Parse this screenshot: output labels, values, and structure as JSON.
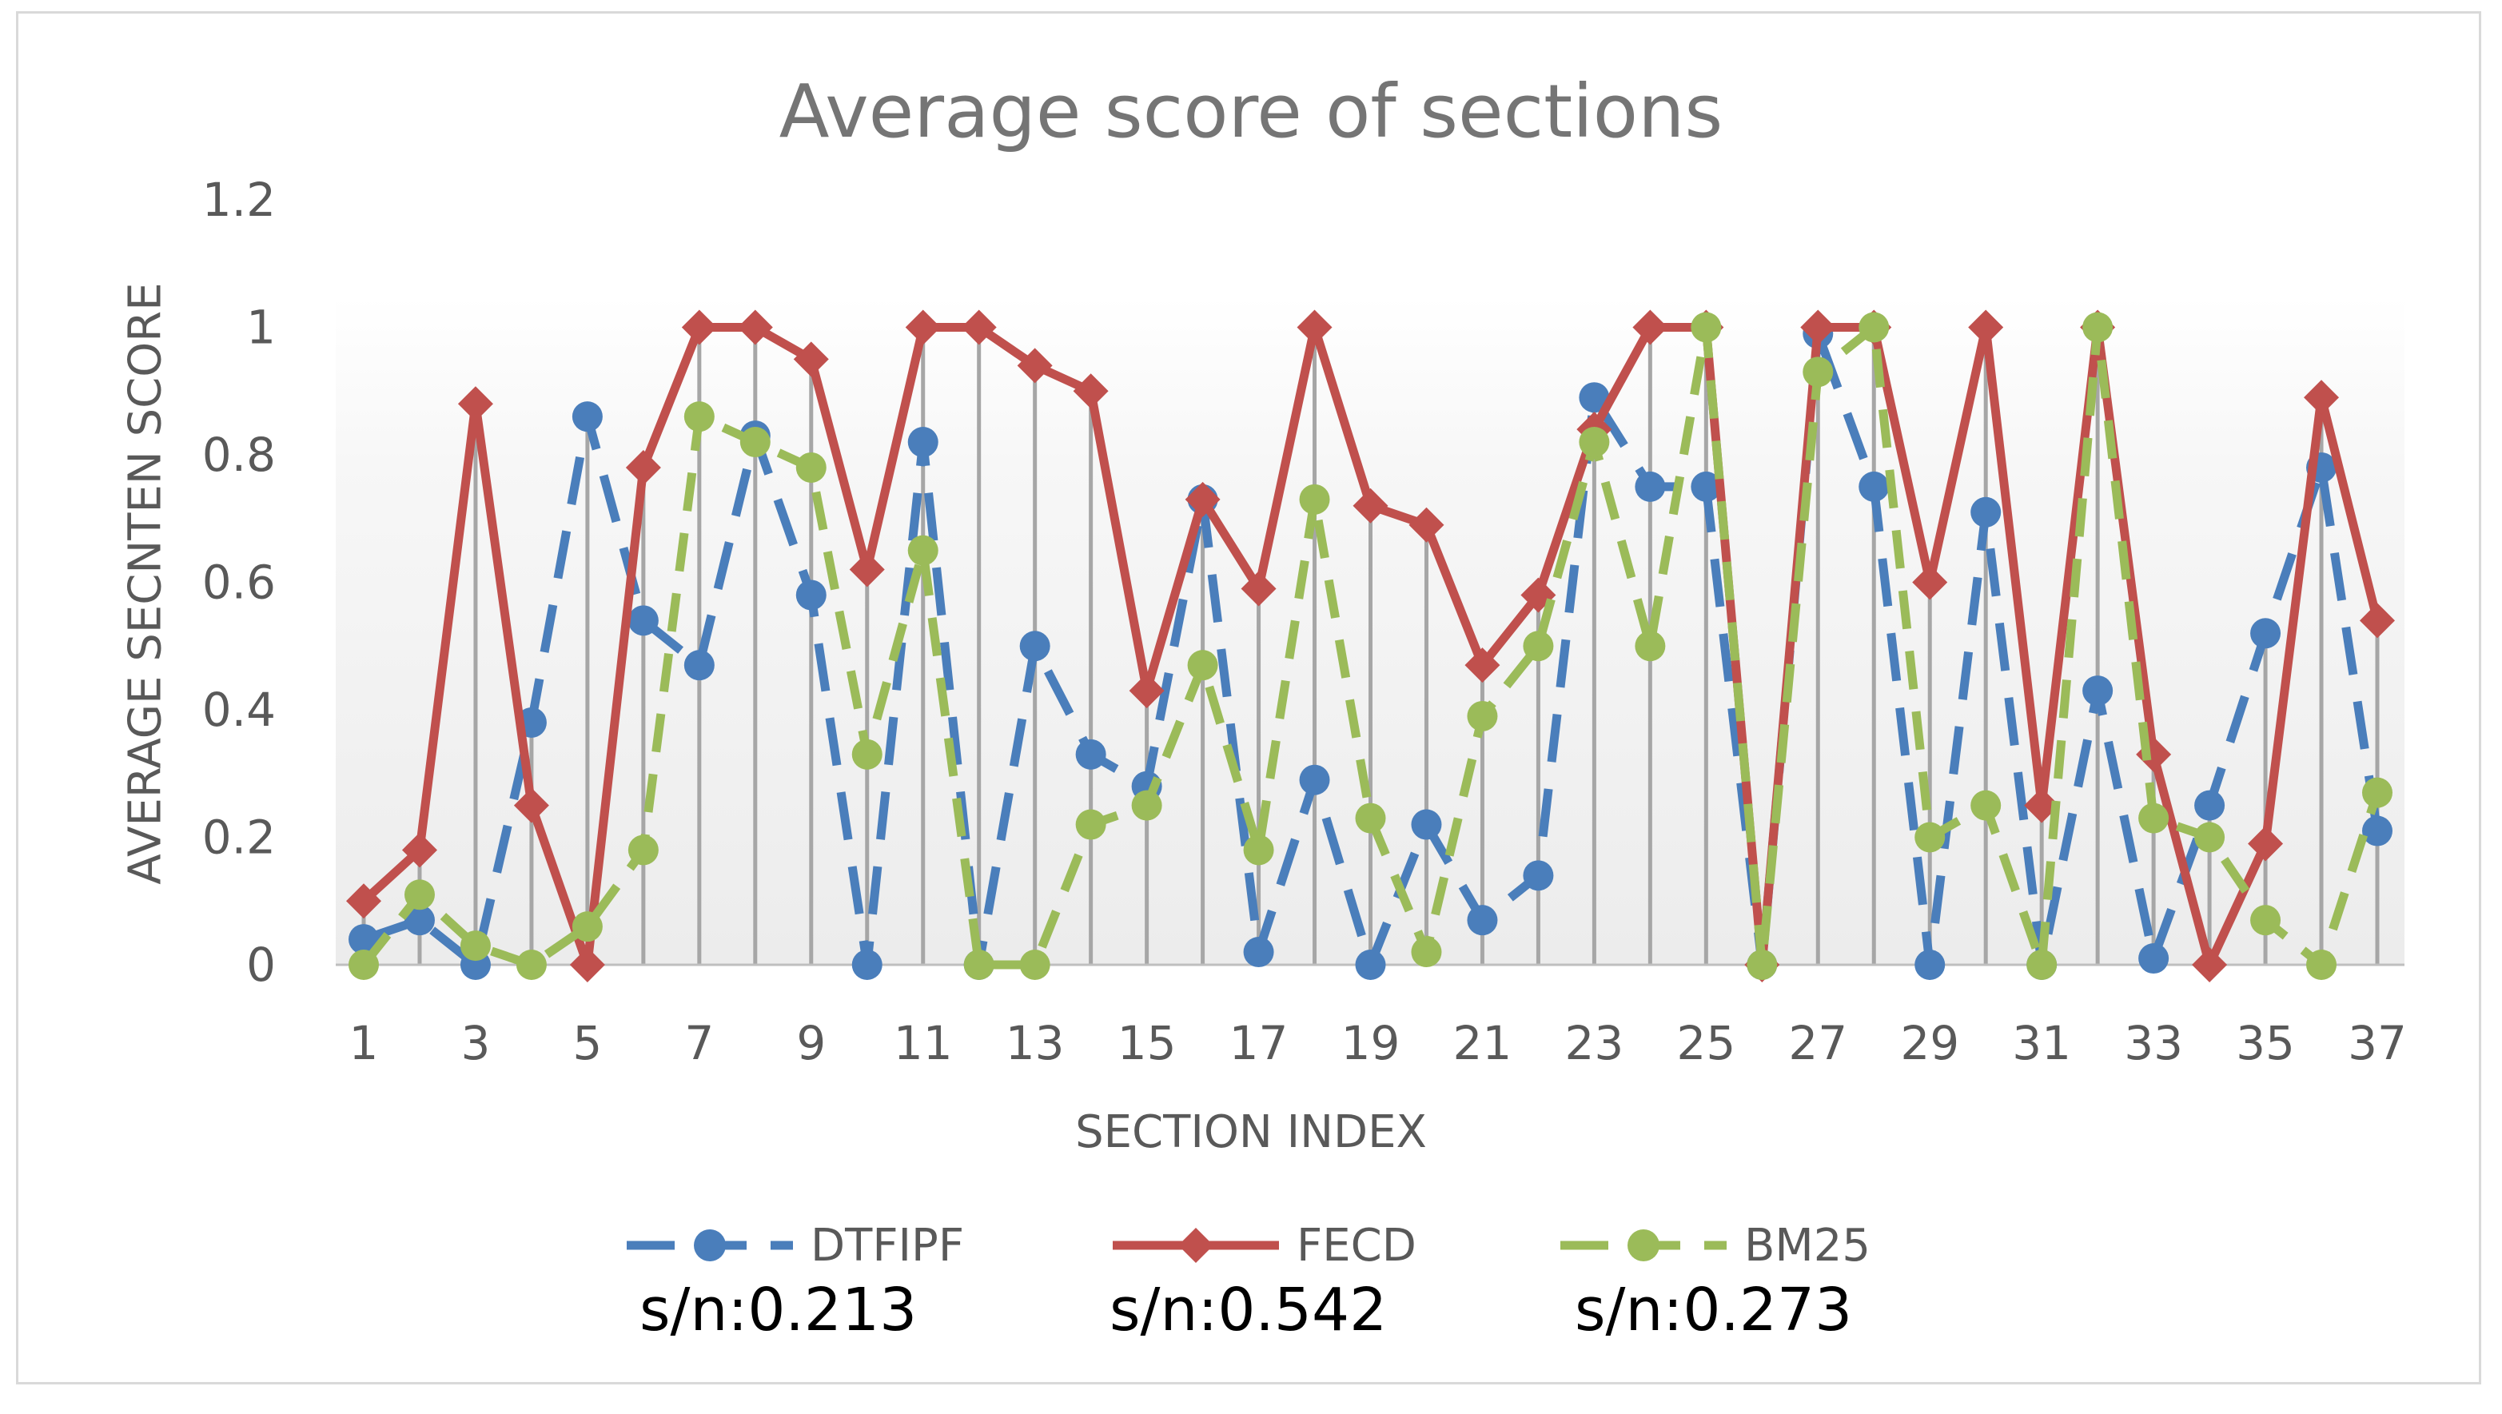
{
  "chart_data": {
    "type": "line",
    "title": "Average score of sections",
    "xlabel": "SECTION INDEX",
    "ylabel": "AVERAGE SECNTEN SCORE",
    "ylim": [
      0,
      1.2
    ],
    "yticks": [
      "0",
      "0.2",
      "0.4",
      "0.6",
      "0.8",
      "1",
      "1.2"
    ],
    "x": [
      1,
      2,
      3,
      4,
      5,
      6,
      7,
      8,
      9,
      10,
      11,
      12,
      13,
      14,
      15,
      16,
      17,
      18,
      19,
      20,
      21,
      22,
      23,
      24,
      25,
      26,
      27,
      28,
      29,
      30,
      31,
      32,
      33,
      34,
      35,
      36,
      37
    ],
    "xtick_labels": [
      "1",
      "3",
      "5",
      "7",
      "9",
      "11",
      "13",
      "15",
      "17",
      "19",
      "21",
      "23",
      "25",
      "27",
      "29",
      "31",
      "33",
      "35",
      "37"
    ],
    "grid": "vertical drop lines",
    "legend_position": "bottom",
    "series": [
      {
        "name": "DTFIPF",
        "color": "#4a7ebb",
        "style": "dashed, circle markers",
        "values": [
          0.04,
          0.07,
          0.0,
          0.38,
          0.86,
          0.54,
          0.47,
          0.83,
          0.58,
          0.0,
          0.82,
          0.0,
          0.5,
          0.33,
          0.28,
          0.73,
          0.02,
          0.29,
          0.0,
          0.22,
          0.07,
          0.14,
          0.89,
          0.75,
          0.75,
          0.0,
          0.99,
          0.75,
          0.0,
          0.71,
          0.0,
          0.43,
          0.01,
          0.25,
          0.52,
          0.78,
          0.21
        ]
      },
      {
        "name": "FECD",
        "color": "#c0504d",
        "style": "solid, diamond markers",
        "values": [
          0.1,
          0.18,
          0.88,
          0.25,
          0.0,
          0.78,
          1.0,
          1.0,
          0.95,
          0.62,
          1.0,
          1.0,
          0.94,
          0.9,
          0.43,
          0.73,
          0.59,
          1.0,
          0.72,
          0.69,
          0.47,
          0.58,
          0.84,
          1.0,
          1.0,
          0.0,
          1.0,
          1.0,
          0.6,
          1.0,
          0.25,
          1.0,
          0.33,
          0.0,
          0.19,
          0.89,
          0.54
        ]
      },
      {
        "name": "BM25",
        "color": "#9bbb59",
        "style": "dashed, circle markers",
        "values": [
          0.0,
          0.11,
          0.03,
          0.0,
          0.06,
          0.18,
          0.86,
          0.82,
          0.78,
          0.33,
          0.65,
          0.0,
          0.0,
          0.22,
          0.25,
          0.47,
          0.18,
          0.73,
          0.23,
          0.02,
          0.39,
          0.5,
          0.82,
          0.5,
          1.0,
          0.0,
          0.93,
          1.0,
          0.2,
          0.25,
          0.0,
          1.0,
          0.23,
          0.2,
          0.07,
          0.0,
          0.27
        ]
      }
    ],
    "annotations": [
      "s/n:0.213",
      "s/n:0.542",
      "s/n:0.273"
    ]
  }
}
